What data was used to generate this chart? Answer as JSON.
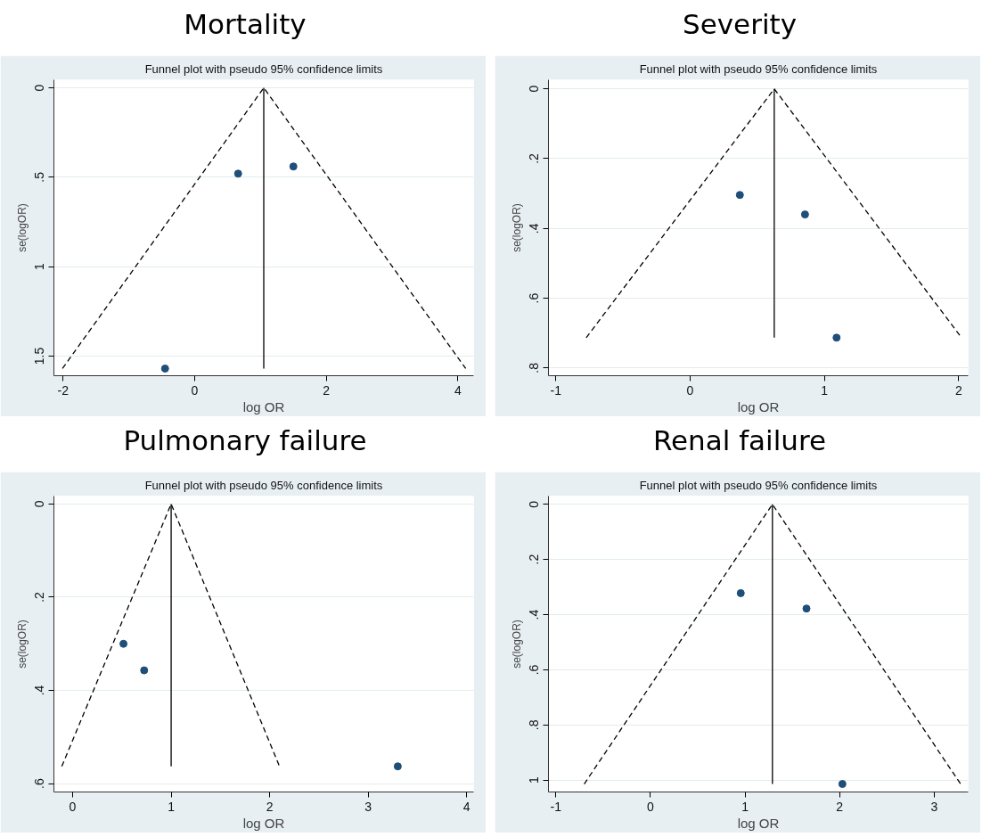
{
  "chart_data": [
    {
      "type": "scatter",
      "title": "Mortality",
      "subtitle": "Funnel plot with pseudo 95% confidence limits",
      "xlabel": "log OR",
      "ylabel": "se(logOR)",
      "xlim": [
        -2.14,
        4.24
      ],
      "ylim": [
        1.61,
        -0.045
      ],
      "xticks": [
        -2,
        0,
        2,
        4
      ],
      "yticks": [
        0,
        {
          "value": 0.5,
          "label": ".5"
        },
        1,
        {
          "value": 1.5,
          "label": "1.5"
        }
      ],
      "grid": "y",
      "series": [
        {
          "marker": "circle",
          "color": "#1f4e79",
          "x": [
            0.66,
            1.5,
            -0.45
          ],
          "values": [
            0.48,
            0.44,
            1.57
          ]
        },
        {
          "type": "line",
          "marker": "none",
          "color": "#000000",
          "line_style": "dashed",
          "x": [
            -2.01,
            1.05,
            4.12
          ],
          "values": [
            1.57,
            0,
            1.57
          ]
        },
        {
          "type": "line",
          "marker": "none",
          "color": "#000000",
          "line_style": "solid",
          "x": [
            1.05,
            1.05
          ],
          "values": [
            0,
            1.57
          ]
        }
      ]
    },
    {
      "type": "scatter",
      "title": "Severity",
      "subtitle": "Funnel plot with pseudo 95% confidence limits",
      "xlabel": "log OR",
      "ylabel": "se(logOR)",
      "xlim": [
        -1.055,
        2.07
      ],
      "ylim": [
        0.822,
        -0.026
      ],
      "xticks": [
        -1,
        0,
        1,
        2
      ],
      "yticks": [
        0,
        {
          "value": 0.2,
          "label": ".2"
        },
        {
          "value": 0.4,
          "label": ".4"
        },
        {
          "value": 0.6,
          "label": ".6"
        },
        {
          "value": 0.8,
          "label": ".8"
        }
      ],
      "grid": "y",
      "series": [
        {
          "marker": "circle",
          "color": "#1f4e79",
          "x": [
            0.37,
            0.855,
            1.09
          ],
          "values": [
            0.304,
            0.36,
            0.713
          ]
        },
        {
          "type": "line",
          "marker": "none",
          "color": "#000000",
          "line_style": "dashed",
          "x": [
            -0.774,
            0.626,
            2.02
          ],
          "values": [
            0.713,
            0,
            0.713
          ]
        },
        {
          "type": "line",
          "marker": "none",
          "color": "#000000",
          "line_style": "solid",
          "x": [
            0.626,
            0.626
          ],
          "values": [
            0,
            0.713
          ]
        }
      ]
    },
    {
      "type": "scatter",
      "title": "Pulmonary failure",
      "subtitle": "Funnel plot with pseudo 95% confidence limits",
      "xlabel": "log OR",
      "ylabel": "se(logOR)",
      "xlim": [
        -0.19,
        4.07
      ],
      "ylim": [
        0.618,
        -0.017
      ],
      "xticks": [
        0,
        1,
        2,
        3,
        4
      ],
      "yticks": [
        0,
        {
          "value": 0.2,
          "label": ".2"
        },
        {
          "value": 0.4,
          "label": ".4"
        },
        {
          "value": 0.6,
          "label": ".6"
        }
      ],
      "grid": "y",
      "series": [
        {
          "marker": "circle",
          "color": "#1f4e79",
          "x": [
            0.516,
            0.726,
            3.3
          ],
          "values": [
            0.3,
            0.357,
            0.563
          ]
        },
        {
          "type": "line",
          "marker": "none",
          "color": "#000000",
          "line_style": "dashed",
          "x": [
            -0.11,
            1.0,
            2.1
          ],
          "values": [
            0.563,
            0,
            0.563
          ]
        },
        {
          "type": "line",
          "marker": "none",
          "color": "#000000",
          "line_style": "solid",
          "x": [
            1.0,
            1.0
          ],
          "values": [
            0,
            0.563
          ]
        }
      ]
    },
    {
      "type": "scatter",
      "title": "Renal failure",
      "subtitle": "Funnel plot with pseudo 95% confidence limits",
      "xlabel": "log OR",
      "ylabel": "se(logOR)",
      "xlim": [
        -1.078,
        3.36
      ],
      "ylim": [
        1.043,
        -0.03
      ],
      "xticks": [
        -1,
        0,
        1,
        2,
        3
      ],
      "yticks": [
        0,
        {
          "value": 0.2,
          "label": ".2"
        },
        {
          "value": 0.4,
          "label": ".4"
        },
        {
          "value": 0.6,
          "label": ".6"
        },
        {
          "value": 0.8,
          "label": ".8"
        },
        1
      ],
      "grid": "y",
      "series": [
        {
          "marker": "circle",
          "color": "#1f4e79",
          "x": [
            0.955,
            1.65,
            2.03
          ],
          "values": [
            0.322,
            0.378,
            1.014
          ]
        },
        {
          "type": "line",
          "marker": "none",
          "color": "#000000",
          "line_style": "dashed",
          "x": [
            -0.7,
            1.29,
            3.28
          ],
          "values": [
            1.014,
            0,
            1.014
          ]
        },
        {
          "type": "line",
          "marker": "none",
          "color": "#000000",
          "line_style": "solid",
          "x": [
            1.29,
            1.29
          ],
          "values": [
            0,
            1.014
          ]
        }
      ]
    }
  ]
}
